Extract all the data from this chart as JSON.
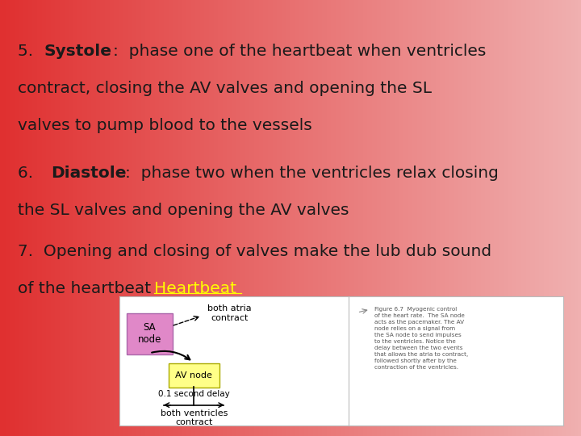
{
  "bg_color_left": "#e03030",
  "bg_color_right": "#f0b0b0",
  "text_color": "#1a1a1a",
  "link_color": "#ffff00",
  "sa_box_color": "#e088c8",
  "av_box_color": "#ffff88",
  "sa_label": "SA\nnode",
  "av_label": "AV node",
  "atria_label": "both atria\ncontract",
  "ventricles_label": "both ventricles\ncontract",
  "delay_label": "0.1 second delay",
  "figure_caption": "Figure 6.7  Myogenic control\nof the heart rate.  The SA node\nacts as the pacemaker. The AV\nnode relies on a signal from\nthe SA node to send impulses\nto the ventricles. Notice the\ndelay between the two events\nthat allows the atria to contract,\nfollowed shortly after by the\ncontraction of the ventricles.",
  "font_size_main": 14.5,
  "font_size_diagram": 8
}
